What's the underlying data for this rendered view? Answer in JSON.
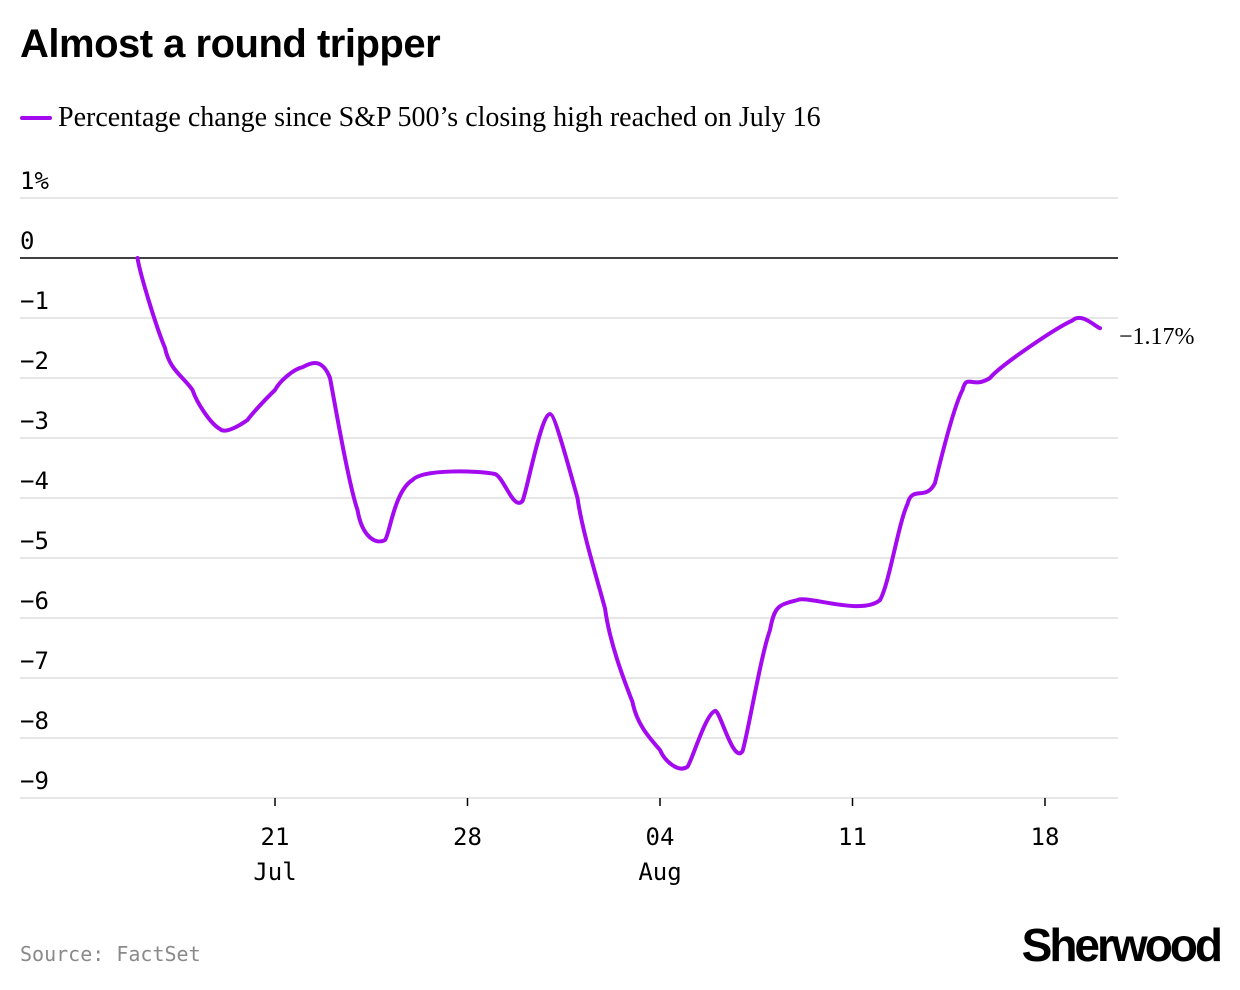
{
  "header": {
    "title": "Almost a round tripper"
  },
  "legend": {
    "label": "Percentage change since S&P 500’s closing high reached on July 16",
    "color": "#a30aef"
  },
  "footer": {
    "source": "Source: FactSet",
    "brand": "Sherwood"
  },
  "chart_data": {
    "type": "line",
    "title": "Almost a round tripper",
    "xlabel": "",
    "ylabel": "",
    "ylim": [
      -9,
      1
    ],
    "xlim": [
      "2024-07-15",
      "2024-08-22"
    ],
    "grid": true,
    "legend_position": "top-left",
    "y_ticks": [
      {
        "value": 1,
        "label": "1%"
      },
      {
        "value": 0,
        "label": "0"
      },
      {
        "value": -1,
        "label": "−1"
      },
      {
        "value": -2,
        "label": "−2"
      },
      {
        "value": -3,
        "label": "−3"
      },
      {
        "value": -4,
        "label": "−4"
      },
      {
        "value": -5,
        "label": "−5"
      },
      {
        "value": -6,
        "label": "−6"
      },
      {
        "value": -7,
        "label": "−7"
      },
      {
        "value": -8,
        "label": "−8"
      },
      {
        "value": -9,
        "label": "−9"
      }
    ],
    "x_ticks": [
      {
        "date": "2024-07-21",
        "label": "21",
        "sublabel": "Jul"
      },
      {
        "date": "2024-07-28",
        "label": "28",
        "sublabel": ""
      },
      {
        "date": "2024-08-04",
        "label": "04",
        "sublabel": "Aug"
      },
      {
        "date": "2024-08-11",
        "label": "11",
        "sublabel": ""
      },
      {
        "date": "2024-08-18",
        "label": "18",
        "sublabel": ""
      }
    ],
    "end_label": "−1.17%",
    "series": [
      {
        "name": "Percentage change since S&P 500’s closing high reached on July 16",
        "color": "#a30aef",
        "points": [
          {
            "x": "2024-07-16",
            "y": 0
          },
          {
            "x": "2024-07-17",
            "y": -1.5
          },
          {
            "x": "2024-07-18",
            "y": -2.2
          },
          {
            "x": "2024-07-19",
            "y": -2.85
          },
          {
            "x": "2024-07-20",
            "y": -2.7
          },
          {
            "x": "2024-07-21",
            "y": -2.2
          },
          {
            "x": "2024-07-22",
            "y": -1.82
          },
          {
            "x": "2024-07-23",
            "y": -2.0
          },
          {
            "x": "2024-07-24",
            "y": -4.2
          },
          {
            "x": "2024-07-25",
            "y": -4.7
          },
          {
            "x": "2024-07-26",
            "y": -3.7
          },
          {
            "x": "2024-07-29",
            "y": -3.6
          },
          {
            "x": "2024-07-30",
            "y": -4.05
          },
          {
            "x": "2024-07-31",
            "y": -2.6
          },
          {
            "x": "2024-08-01",
            "y": -4.0
          },
          {
            "x": "2024-08-02",
            "y": -5.84
          },
          {
            "x": "2024-08-03",
            "y": -7.4
          },
          {
            "x": "2024-08-04",
            "y": -8.2
          },
          {
            "x": "2024-08-05",
            "y": -8.48
          },
          {
            "x": "2024-08-06",
            "y": -7.55
          },
          {
            "x": "2024-08-07",
            "y": -8.22
          },
          {
            "x": "2024-08-08",
            "y": -6.2
          },
          {
            "x": "2024-08-09",
            "y": -5.7
          },
          {
            "x": "2024-08-12",
            "y": -5.7
          },
          {
            "x": "2024-08-13",
            "y": -4.1
          },
          {
            "x": "2024-08-14",
            "y": -3.75
          },
          {
            "x": "2024-08-15",
            "y": -2.2
          },
          {
            "x": "2024-08-16",
            "y": -2.0
          },
          {
            "x": "2024-08-19",
            "y": -1.04
          },
          {
            "x": "2024-08-20",
            "y": -1.17
          }
        ]
      }
    ]
  }
}
